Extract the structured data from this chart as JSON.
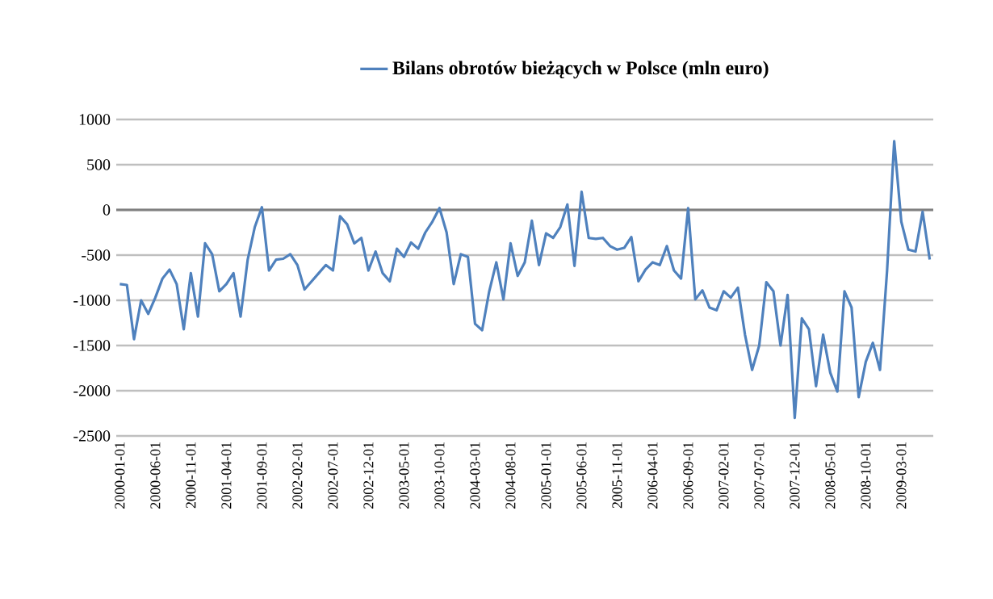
{
  "chart_data": {
    "type": "line",
    "categories": [
      "2000-01-01",
      null,
      null,
      null,
      null,
      "2000-06-01",
      null,
      null,
      null,
      null,
      "2000-11-01",
      null,
      null,
      null,
      null,
      "2001-04-01",
      null,
      null,
      null,
      null,
      "2001-09-01",
      null,
      null,
      null,
      null,
      "2002-02-01",
      null,
      null,
      null,
      null,
      "2002-07-01",
      null,
      null,
      null,
      null,
      "2002-12-01",
      null,
      null,
      null,
      null,
      "2003-05-01",
      null,
      null,
      null,
      null,
      "2003-10-01",
      null,
      null,
      null,
      null,
      "2004-03-01",
      null,
      null,
      null,
      null,
      "2004-08-01",
      null,
      null,
      null,
      null,
      "2005-01-01",
      null,
      null,
      null,
      null,
      "2005-06-01",
      null,
      null,
      null,
      null,
      "2005-11-01",
      null,
      null,
      null,
      null,
      "2006-04-01",
      null,
      null,
      null,
      null,
      "2006-09-01",
      null,
      null,
      null,
      null,
      "2007-02-01",
      null,
      null,
      null,
      null,
      "2007-07-01",
      null,
      null,
      null,
      null,
      "2007-12-01",
      null,
      null,
      null,
      null,
      "2008-05-01",
      null,
      null,
      null,
      null,
      "2008-10-01",
      null,
      null,
      null,
      null,
      "2009-03-01",
      null,
      null,
      null,
      null
    ],
    "series": [
      {
        "name": "Bilans obrotów bieżących w Polsce (mln euro)",
        "color": "#4f81bd",
        "values": [
          -820,
          -830,
          -1430,
          -1000,
          -1150,
          -970,
          -760,
          -660,
          -820,
          -1320,
          -700,
          -1180,
          -370,
          -490,
          -900,
          -820,
          -700,
          -1180,
          -550,
          -190,
          30,
          -670,
          -550,
          -540,
          -490,
          -610,
          -880,
          -790,
          -700,
          -610,
          -670,
          -70,
          -160,
          -370,
          -310,
          -670,
          -460,
          -700,
          -790,
          -430,
          -520,
          -360,
          -430,
          -250,
          -130,
          20,
          -250,
          -820,
          -490,
          -520,
          -1260,
          -1330,
          -900,
          -580,
          -990,
          -370,
          -730,
          -580,
          -120,
          -610,
          -260,
          -310,
          -190,
          60,
          -620,
          200,
          -310,
          -320,
          -310,
          -400,
          -440,
          -420,
          -300,
          -790,
          -660,
          -580,
          -610,
          -400,
          -670,
          -760,
          20,
          -990,
          -890,
          -1080,
          -1110,
          -900,
          -970,
          -860,
          -1380,
          -1770,
          -1500,
          -800,
          -900,
          -1500,
          -940,
          -2300,
          -1200,
          -1320,
          -1950,
          -1380,
          -1800,
          -2010,
          -900,
          -1080,
          -2070,
          -1680,
          -1470,
          -1770,
          -670,
          760,
          -130,
          -440,
          -460,
          -20,
          -550
        ]
      }
    ],
    "ylim": [
      -2500,
      1000
    ],
    "yticks": [
      -2500,
      -2000,
      -1500,
      -1000,
      -500,
      0,
      500,
      1000
    ],
    "grid": "y",
    "legend": "top",
    "marker": "none",
    "line_style": "solid",
    "ref_lines": [
      {
        "axis": "y",
        "value": 0,
        "color": "#808080"
      }
    ]
  }
}
